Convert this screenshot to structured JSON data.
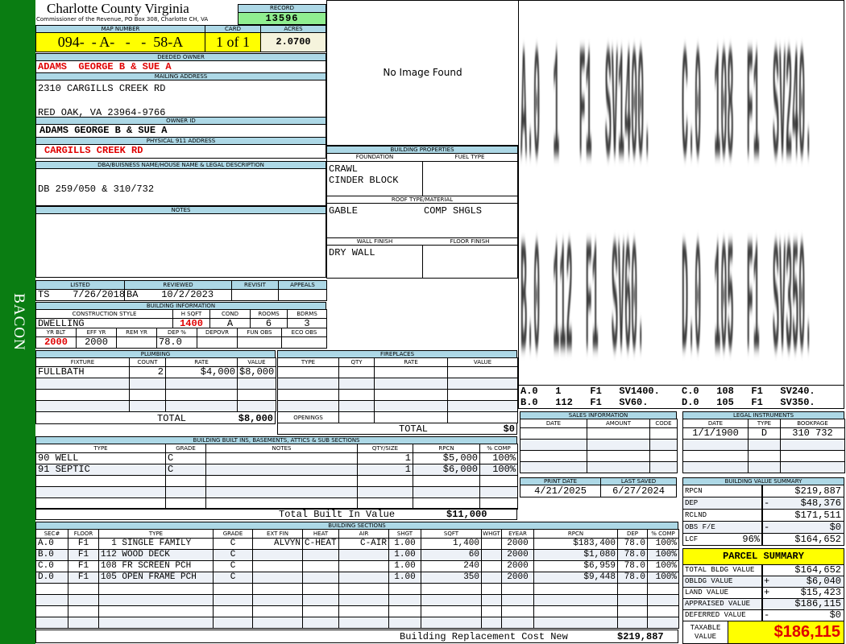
{
  "sidebar": {
    "district": "BACON"
  },
  "header": {
    "title": "Charlotte County Virginia",
    "subtitle": "Commissioner of the Revenue, PO Box 308, Charlotte CH, VA",
    "record_label": "RECORD",
    "record": "13596",
    "map_label": "MAP NUMBER",
    "map_number": "094-  - A-   -   -  58-A",
    "card_label": "CARD",
    "card": "1 of 1",
    "acres_label": "ACRES",
    "acres": "2.0700"
  },
  "owner": {
    "deeded_label": "DEEDED OWNER",
    "deeded": "ADAMS  GEORGE B & SUE A",
    "mailing_label": "MAILING ADDRESS",
    "mailing_line1": "2310 CARGILLS CREEK RD",
    "mailing_line2": "RED OAK, VA 23964-9766",
    "owner_id_label": "OWNER ID",
    "owner_id": "ADAMS GEORGE B & SUE A",
    "physical_label": "PHYSICAL 911 ADDRESS",
    "physical": "CARGILLS CREEK RD"
  },
  "dba": {
    "label": "DBA/BUISNESS NAME/HOUSE NAME & LEGAL DESCRIPTION",
    "value": "DB 259/050 & 310/732"
  },
  "notes": {
    "label": "NOTES",
    "value": ""
  },
  "image": {
    "placeholder": "No Image Found"
  },
  "building_properties": {
    "label": "BUILDING PROPERTIES",
    "foundation_label": "FOUNDATION",
    "fuel_label": "FUEL TYPE",
    "foundation": [
      "CRAWL",
      "CINDER BLOCK"
    ],
    "fuel": "",
    "roof_label": "ROOF TYPE/MATERIAL",
    "roof_type": "GABLE",
    "roof_material": "COMP SHGLS",
    "wall_label": "WALL FINISH",
    "floor_label": "FLOOR FINISH",
    "wall": "DRY WALL",
    "floor": ""
  },
  "review": {
    "headers": [
      "LISTED",
      "REVIEWED",
      "REVISIT",
      "APPEALS"
    ],
    "listed_by": "TS",
    "listed": "7/26/2018",
    "reviewed_by": "BA",
    "reviewed": "10/2/2023",
    "revisit": "",
    "appeals": ""
  },
  "building_info": {
    "label": "BUILDING INFORMATION",
    "headers1": [
      "CONSTRUCTION STYLE",
      "H SQFT",
      "COND",
      "ROOMS",
      "BDRMS"
    ],
    "values1": [
      "DWELLING",
      "1400",
      "A",
      "6",
      "3"
    ],
    "headers2": [
      "YR BLT",
      "EFF YR",
      "REM YR",
      "DEP %",
      "DEPOVR",
      "FUN OBS",
      "ECO OBS"
    ],
    "values2": [
      "2000",
      "2000",
      "",
      "78.0",
      "",
      "",
      ""
    ]
  },
  "plumbing": {
    "label": "PLUMBING",
    "headers": [
      "FIXTURE",
      "COUNT",
      "RATE",
      "VALUE"
    ],
    "rows": [
      [
        "FULLBATH",
        "2",
        "$4,000",
        "$8,000"
      ]
    ],
    "total_label": "TOTAL",
    "total": "$8,000"
  },
  "fireplaces": {
    "label": "FIREPLACES",
    "headers": [
      "TYPE",
      "QTY",
      "RATE",
      "VALUE"
    ],
    "rows": [],
    "openings_label": "OPENINGS",
    "total_label": "TOTAL",
    "total": "$0"
  },
  "built_ins": {
    "label": "BUILDING BUILT INS, BASEMENTS, ATTICS & SUB SECTIONS",
    "headers": [
      "TYPE",
      "GRADE",
      "NOTES",
      "QTY/SIZE",
      "RPCN",
      "% COMP"
    ],
    "rows": [
      [
        "90 WELL",
        "C",
        "",
        "1",
        "$5,000",
        "100%"
      ],
      [
        "91 SEPTIC",
        "C",
        "",
        "1",
        "$6,000",
        "100%"
      ]
    ],
    "total_label": "Total Built In Value",
    "total": "$11,000"
  },
  "sections": {
    "label": "BUILDING SECTIONS",
    "headers": [
      "SEC#",
      "FLOOR",
      "TYPE",
      "GRADE",
      "EXT FIN",
      "HEAT",
      "AIR",
      "SHGT",
      "SQFT",
      "WHGT",
      "EYEAR",
      "RPCN",
      "DEP",
      "% COMP"
    ],
    "rows": [
      [
        "A.0",
        "F1",
        "  1 SINGLE FAMILY",
        "C",
        "ALVYN",
        "C-HEAT",
        "C-AIR",
        "1.00",
        "1,400",
        "",
        "2000",
        "$183,400",
        "78.0",
        "100%"
      ],
      [
        "B.0",
        "F1",
        "112 WOOD DECK",
        "C",
        "",
        "",
        "",
        "1.00",
        "60",
        "",
        "2000",
        "$1,080",
        "78.0",
        "100%"
      ],
      [
        "C.0",
        "F1",
        "108 FR SCREEN PCH",
        "C",
        "",
        "",
        "",
        "1.00",
        "240",
        "",
        "2000",
        "$6,959",
        "78.0",
        "100%"
      ],
      [
        "D.0",
        "F1",
        "105 OPEN FRAME PCH",
        "C",
        "",
        "",
        "",
        "1.00",
        "350",
        "",
        "2000",
        "$9,448",
        "78.0",
        "100%"
      ]
    ],
    "total_label": "Building Replacement Cost New",
    "total": "$219,887"
  },
  "sketch": {
    "areas": [
      "A.0  1   F1  SV1400.",
      "C.0  108  F1  SV240.",
      "B.0  112  F1  SV60.",
      "D.0  105  F1  SV350."
    ],
    "legend": [
      "A.0   1     F1   SV1400.",
      "B.0   112   F1   SV60.",
      "C.0   108   F1   SV240.",
      "D.0   105   F1   SV350."
    ]
  },
  "sales": {
    "label": "SALES INFORMATION",
    "headers": [
      "DATE",
      "AMOUNT",
      "CODE"
    ],
    "rows": []
  },
  "legal": {
    "label": "LEGAL INSTRUMENTS",
    "headers": [
      "DATE",
      "TYPE",
      "BOOKPAGE"
    ],
    "rows": [
      [
        "1/1/1900",
        "D",
        "310 732"
      ]
    ]
  },
  "dates": {
    "print_label": "PRINT DATE",
    "print": "4/21/2025",
    "saved_label": "LAST SAVED",
    "saved": "6/27/2024"
  },
  "bvs": {
    "label": "BUILDING VALUE SUMMARY",
    "rows": [
      {
        "label": "RPCN",
        "pct": "",
        "sign": "",
        "value": "$219,887"
      },
      {
        "label": "DEP",
        "pct": "",
        "sign": "-",
        "value": "$48,376"
      },
      {
        "label": "RCLND",
        "pct": "",
        "sign": "",
        "value": "$171,511"
      },
      {
        "label": "OBS F/E",
        "pct": "",
        "sign": "-",
        "value": "$0"
      },
      {
        "label": "LCF",
        "pct": "96%",
        "sign": "",
        "value": "$164,652"
      }
    ]
  },
  "parcel": {
    "label": "PARCEL SUMMARY",
    "rows": [
      {
        "label": "TOTAL BLDG VALUE",
        "sign": "",
        "value": "$164,652"
      },
      {
        "label": "OBLDG VALUE",
        "sign": "+",
        "value": "$6,040"
      },
      {
        "label": "LAND VALUE",
        "sign": "+",
        "value": "$15,423"
      },
      {
        "label": "APPRAISED VALUE",
        "sign": "",
        "value": "$186,115"
      },
      {
        "label": "DEFERRED VALUE",
        "sign": "-",
        "value": "$0"
      }
    ],
    "taxable_label": "TAXABLE VALUE",
    "taxable": "$186,115"
  },
  "colors": {
    "sidebar": "#0a7d12",
    "header_bar": "#add8e6",
    "record": "#90ee90",
    "highlight": "#ffff00",
    "alert": "#e00000"
  }
}
